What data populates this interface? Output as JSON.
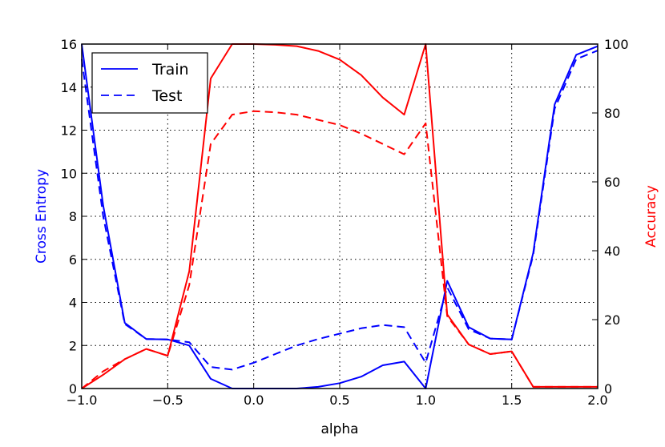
{
  "chart_data": {
    "type": "line",
    "xlabel": "alpha",
    "ylabel_left": "Cross Entropy",
    "ylabel_right": "Accuracy",
    "xlim": [
      -1.0,
      2.0
    ],
    "ylim_left": [
      0,
      16
    ],
    "ylim_right": [
      0,
      100
    ],
    "x_ticks": [
      -1.0,
      -0.5,
      0.0,
      0.5,
      1.0,
      1.5,
      2.0
    ],
    "x_tick_labels": [
      "−1.0",
      "−0.5",
      "0.0",
      "0.5",
      "1.0",
      "1.5",
      "2.0"
    ],
    "y_left_ticks": [
      0,
      2,
      4,
      6,
      8,
      10,
      12,
      14,
      16
    ],
    "y_left_tick_labels": [
      "0",
      "2",
      "4",
      "6",
      "8",
      "10",
      "12",
      "14",
      "16"
    ],
    "y_right_ticks": [
      0,
      20,
      40,
      60,
      80,
      100
    ],
    "y_right_tick_labels": [
      "0",
      "20",
      "40",
      "60",
      "80",
      "100"
    ],
    "grid": true,
    "legend_position": "top-left",
    "legend": [
      {
        "label": "Train",
        "style": "solid",
        "color": "#0000ff"
      },
      {
        "label": "Test",
        "style": "dashed",
        "color": "#0000ff"
      }
    ],
    "x": [
      -1.0,
      -0.875,
      -0.75,
      -0.625,
      -0.5,
      -0.375,
      -0.25,
      -0.125,
      0.0,
      0.125,
      0.25,
      0.375,
      0.5,
      0.625,
      0.75,
      0.875,
      1.0,
      1.125,
      1.25,
      1.375,
      1.5,
      1.625,
      1.75,
      1.875,
      2.0
    ],
    "series": [
      {
        "name": "Train",
        "metric": "Cross Entropy",
        "axis": "left",
        "style": "solid",
        "color": "#0000ff",
        "values": [
          16.0,
          8.5,
          3.05,
          2.3,
          2.28,
          2.0,
          0.45,
          0.0,
          0.0,
          0.0,
          0.0,
          0.08,
          0.25,
          0.55,
          1.08,
          1.25,
          0.0,
          5.0,
          2.85,
          2.32,
          2.28,
          6.3,
          13.2,
          15.5,
          15.9
        ]
      },
      {
        "name": "Test",
        "metric": "Cross Entropy",
        "axis": "left",
        "style": "dashed",
        "color": "#0000ff",
        "values": [
          15.3,
          8.0,
          3.0,
          2.3,
          2.28,
          2.15,
          1.0,
          0.88,
          1.2,
          1.6,
          2.0,
          2.3,
          2.55,
          2.8,
          2.95,
          2.85,
          1.2,
          4.7,
          2.75,
          2.32,
          2.28,
          6.2,
          13.0,
          15.3,
          15.7
        ]
      },
      {
        "name": "Train",
        "metric": "Accuracy",
        "axis": "right",
        "style": "solid",
        "color": "#ff0000",
        "values": [
          0,
          4,
          8.5,
          11.5,
          9.5,
          34,
          90,
          100,
          100,
          99.8,
          99.4,
          98,
          95.5,
          91,
          84.5,
          79.5,
          100,
          21.5,
          12.8,
          10,
          10.8,
          0.5,
          0.5,
          0.5,
          0.5
        ]
      },
      {
        "name": "Test",
        "metric": "Accuracy",
        "axis": "right",
        "style": "dashed",
        "color": "#ff0000",
        "values": [
          0,
          5,
          8.5,
          11.5,
          9.5,
          30,
          71,
          79.5,
          80.5,
          80.2,
          79.5,
          78,
          76.5,
          74,
          71,
          68,
          77,
          21,
          12.8,
          10,
          10.8,
          0.5,
          0.5,
          0.5,
          0.5
        ]
      }
    ]
  }
}
